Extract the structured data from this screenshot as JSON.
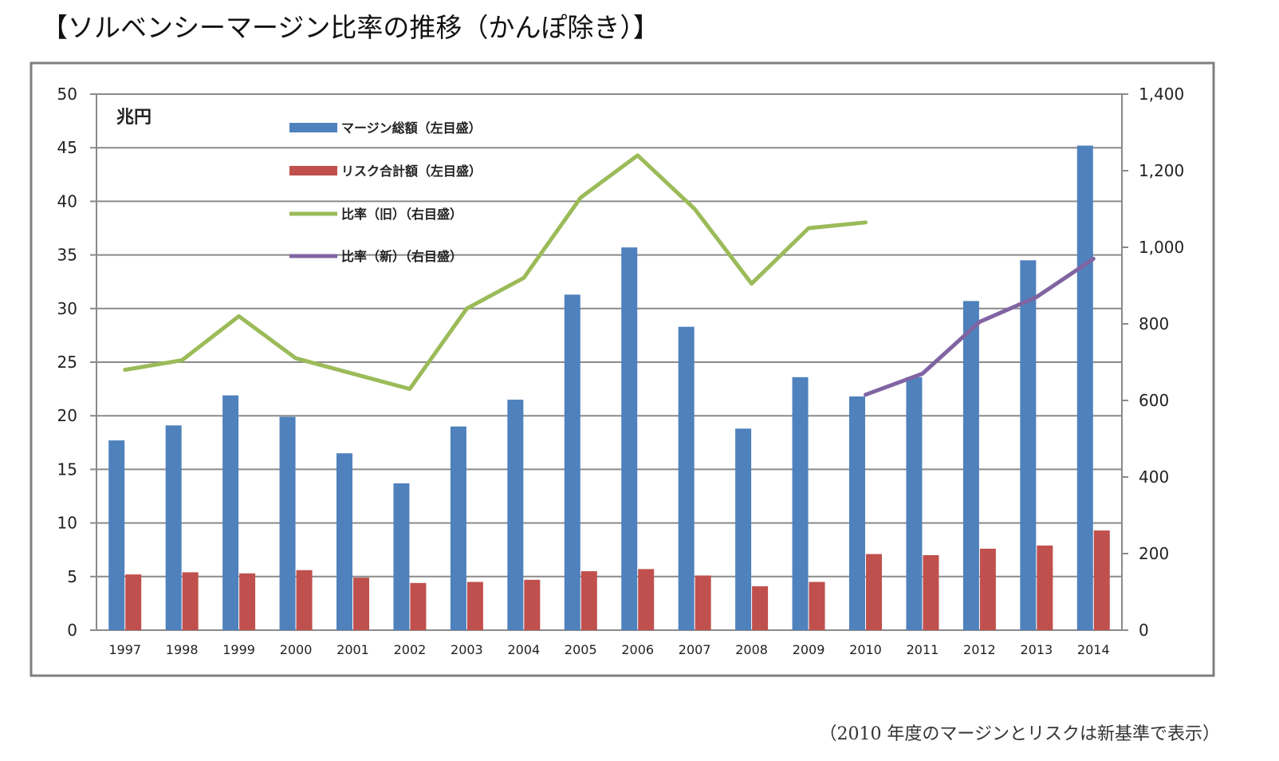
{
  "page": {
    "title": "【ソルベンシーマージン比率の推移（かんぽ除き）】",
    "footnote": "（2010  年度のマージンとリスクは新基準で表示）"
  },
  "chart_data": {
    "type": "bar",
    "unit_label": "兆円",
    "categories": [
      "1997",
      "1998",
      "1999",
      "2000",
      "2001",
      "2002",
      "2003",
      "2004",
      "2005",
      "2006",
      "2007",
      "2008",
      "2009",
      "2010",
      "2011",
      "2012",
      "2013",
      "2014"
    ],
    "left_axis": {
      "min": 0,
      "max": 50,
      "ticks": [
        "0",
        "5",
        "10",
        "15",
        "20",
        "25",
        "30",
        "35",
        "40",
        "45",
        "50"
      ]
    },
    "right_axis": {
      "min": 0,
      "max": 1400,
      "ticks": [
        "0",
        "200",
        "400",
        "600",
        "800",
        "1,000",
        "1,200",
        "1,400"
      ]
    },
    "grid": true,
    "legend_position": "top-left",
    "series": [
      {
        "name": "マージン総額（左目盛）",
        "kind": "bar",
        "axis": "left",
        "color": "#4f81bd",
        "values": [
          17.7,
          19.1,
          21.9,
          19.9,
          16.5,
          13.7,
          19.0,
          21.5,
          31.3,
          35.7,
          28.3,
          18.8,
          23.6,
          21.8,
          23.6,
          30.7,
          34.5,
          45.2
        ]
      },
      {
        "name": "リスク合計額（左目盛）",
        "kind": "bar",
        "axis": "left",
        "color": "#c0504d",
        "values": [
          5.2,
          5.4,
          5.3,
          5.6,
          4.9,
          4.4,
          4.5,
          4.7,
          5.5,
          5.7,
          5.1,
          4.1,
          4.5,
          7.1,
          7.0,
          7.6,
          7.9,
          9.3
        ]
      },
      {
        "name": "比率（旧）（右目盛）",
        "kind": "line",
        "axis": "right",
        "color": "#9bbb59",
        "values": [
          680,
          705,
          820,
          710,
          670,
          630,
          840,
          920,
          1130,
          1240,
          1100,
          905,
          1050,
          1065,
          null,
          null,
          null,
          null
        ]
      },
      {
        "name": "比率（新）（右目盛）",
        "kind": "line",
        "axis": "right",
        "color": "#8064a2",
        "values": [
          null,
          null,
          null,
          null,
          null,
          null,
          null,
          null,
          null,
          null,
          null,
          null,
          null,
          615,
          670,
          805,
          870,
          970
        ]
      }
    ]
  }
}
